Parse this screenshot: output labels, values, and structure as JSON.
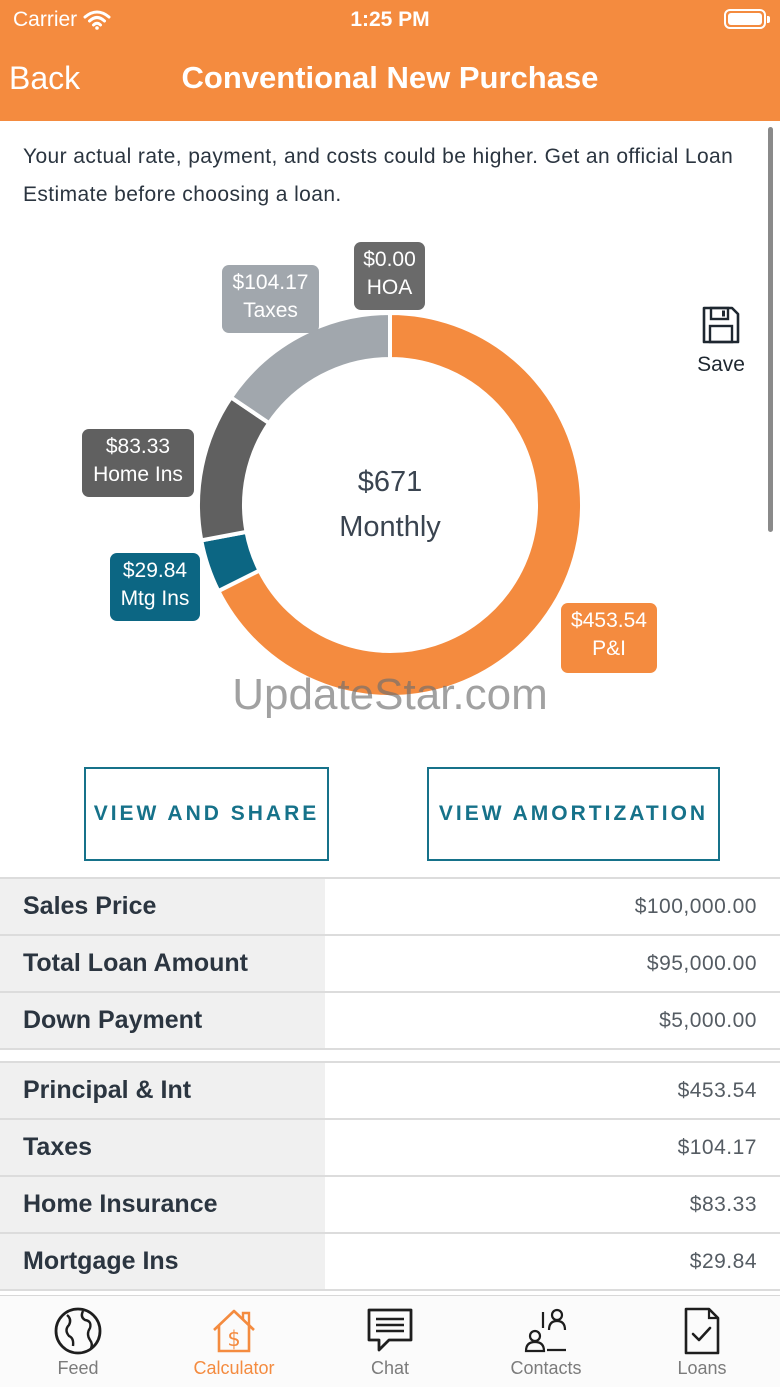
{
  "status_bar": {
    "carrier": "Carrier",
    "time": "1:25 PM"
  },
  "nav": {
    "back_label": "Back",
    "title": "Conventional New Purchase"
  },
  "disclaimer": "Your actual rate, payment, and costs could be higher. Get an official Loan Estimate before choosing a loan.",
  "chart_data": {
    "type": "pie",
    "title": "",
    "center_amount": "$671",
    "center_label": "Monthly",
    "series": [
      {
        "name": "P&I",
        "label": "$453.54",
        "value": 453.54,
        "color": "#f48b3f"
      },
      {
        "name": "Mtg Ins",
        "label": "$29.84",
        "value": 29.84,
        "color": "#0c6683"
      },
      {
        "name": "Home Ins",
        "label": "$83.33",
        "value": 83.33,
        "color": "#606060"
      },
      {
        "name": "Taxes",
        "label": "$104.17",
        "value": 104.17,
        "color": "#a1a7ad"
      },
      {
        "name": "HOA",
        "label": "$0.00",
        "value": 0.0,
        "color": "#6a6a6a"
      }
    ]
  },
  "watermark": "UpdateStar.com",
  "save": {
    "label": "Save",
    "icon": "floppy-disk-icon"
  },
  "buttons": {
    "view_share": "VIEW AND SHARE",
    "view_amortization": "VIEW AMORTIZATION"
  },
  "loan_table": [
    {
      "label": "Sales Price",
      "value": "$100,000.00"
    },
    {
      "label": "Total Loan Amount",
      "value": "$95,000.00"
    },
    {
      "label": "Down Payment",
      "value": "$5,000.00"
    }
  ],
  "payment_table": [
    {
      "label": "Principal & Int",
      "value": "$453.54"
    },
    {
      "label": "Taxes",
      "value": "$104.17"
    },
    {
      "label": "Home Insurance",
      "value": "$83.33"
    },
    {
      "label": "Mortgage Ins",
      "value": "$29.84"
    }
  ],
  "tabs": [
    {
      "label": "Feed",
      "icon": "globe-icon"
    },
    {
      "label": "Calculator",
      "icon": "house-dollar-icon",
      "active": true
    },
    {
      "label": "Chat",
      "icon": "chat-bubble-icon"
    },
    {
      "label": "Contacts",
      "icon": "contacts-icon"
    },
    {
      "label": "Loans",
      "icon": "document-check-icon"
    }
  ],
  "colors": {
    "accent": "#f48b3f",
    "teal": "#16728a",
    "text": "#2b3540"
  }
}
